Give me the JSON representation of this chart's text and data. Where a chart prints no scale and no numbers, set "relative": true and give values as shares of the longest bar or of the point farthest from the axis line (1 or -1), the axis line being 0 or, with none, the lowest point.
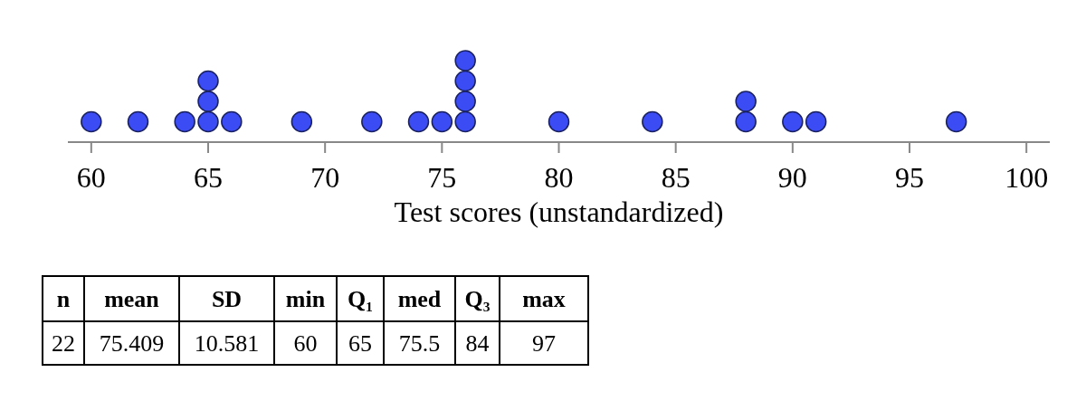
{
  "chart_data": {
    "type": "scatter",
    "relative": true,
    "marker": "circle",
    "xlabel": "Test scores (unstandardized)",
    "xlim": [
      59,
      101
    ],
    "xticks": [
      60,
      65,
      70,
      75,
      80,
      85,
      90,
      95,
      100
    ],
    "series": [
      {
        "color": "#3b4cf5",
        "x": [
          60,
          62,
          64,
          65,
          65,
          65,
          66,
          69,
          72,
          74,
          75,
          76,
          76,
          76,
          76,
          80,
          84,
          88,
          88,
          90,
          91,
          97
        ],
        "values": [
          0.25,
          0.25,
          0.25,
          0.25,
          0.5,
          0.75,
          0.25,
          0.25,
          0.25,
          0.25,
          0.25,
          0.25,
          0.5,
          0.75,
          1,
          0.25,
          0.25,
          0.25,
          0.5,
          0.25,
          0.25,
          0.25
        ]
      }
    ],
    "annotations": [
      "n",
      "mean",
      "SD",
      "min",
      "Q₁",
      "med",
      "Q₃",
      "max",
      "22",
      "75.409",
      "10.581",
      "60",
      "65",
      "75.5",
      "84",
      "97"
    ]
  }
}
